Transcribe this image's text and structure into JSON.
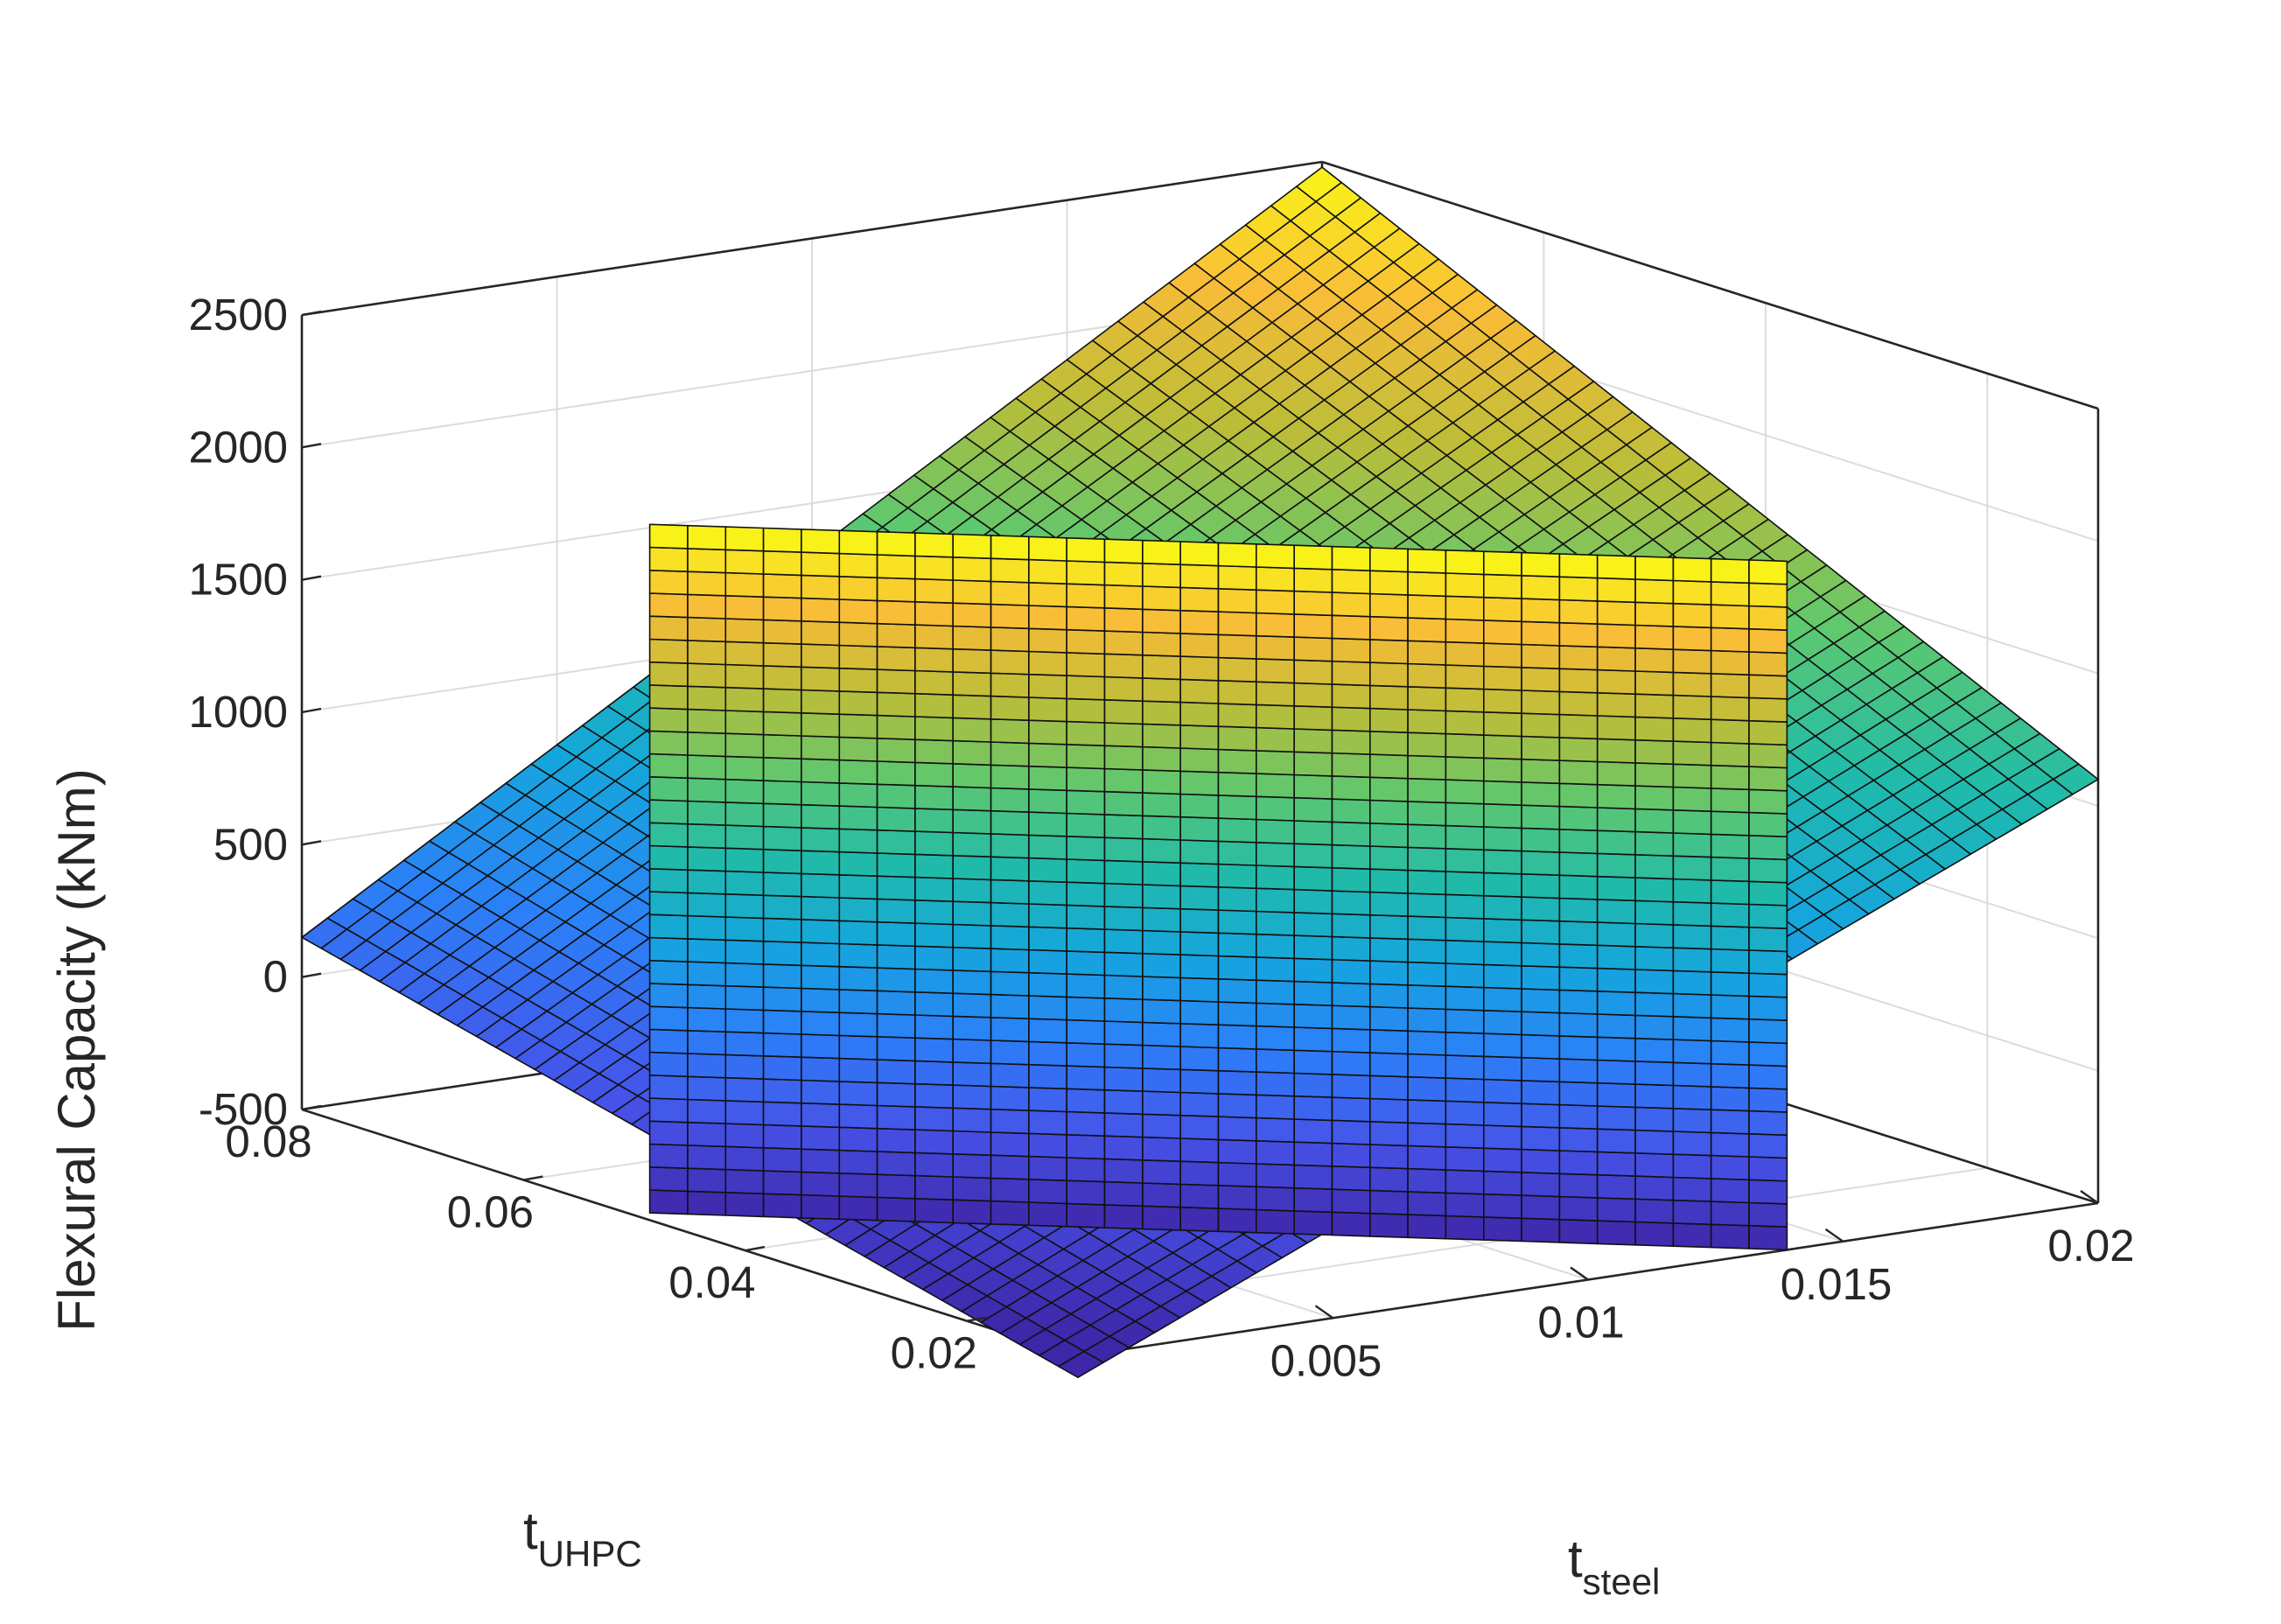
{
  "chart_data": {
    "type": "surface3d",
    "xlabel": "t",
    "xlabel_subscript": "steel",
    "ylabel": "t",
    "ylabel_subscript": "UHPC",
    "zlabel": "Flexural Capacity  (kNm)",
    "xlim": [
      0,
      0.02
    ],
    "ylim": [
      0.01,
      0.08
    ],
    "zlim": [
      -500,
      2500
    ],
    "x_ticks": [
      0.005,
      0.01,
      0.015,
      0.02
    ],
    "x_tick_labels": [
      "0.005",
      "0.01",
      "0.015",
      "0.02"
    ],
    "y_ticks": [
      0.02,
      0.04,
      0.06,
      0.08
    ],
    "y_tick_labels": [
      "0.02",
      "0.04",
      "0.06",
      "0.08"
    ],
    "z_ticks": [
      -500,
      0,
      500,
      1000,
      1500,
      2000,
      2500
    ],
    "z_tick_labels": [
      "-500",
      "0",
      "500",
      "1000",
      "1500",
      "2000",
      "2500"
    ],
    "grid": true,
    "colormap": "parula",
    "surfaces": [
      {
        "kind": "capacity-surface",
        "x_range": [
          0,
          0.02
        ],
        "y_range": [
          0.01,
          0.08
        ],
        "corner_values": {
          "x0_y0": -580,
          "x1_y0": 1100,
          "x0_y1": 150,
          "x1_y1": 2480
        },
        "grid_divisions": [
          40,
          40
        ],
        "color_range": [
          -500,
          2500
        ]
      },
      {
        "kind": "vertical-plane",
        "x_range": [
          0.0003,
          0.0139
        ],
        "y_range": [
          0.05,
          0.01
        ],
        "z_range": [
          -500,
          2100
        ],
        "grid_divisions": [
          30,
          30
        ],
        "color_range": [
          -500,
          2100
        ]
      }
    ]
  }
}
